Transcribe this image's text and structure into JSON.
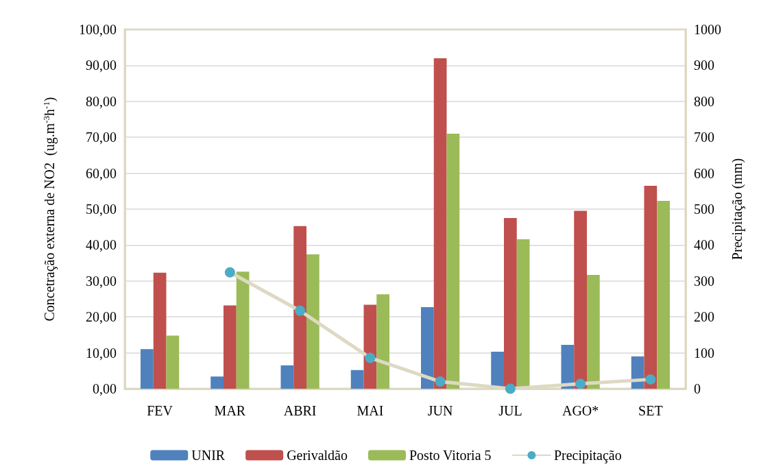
{
  "chart_data": {
    "type": "bar",
    "categories": [
      "FEV",
      "MAR",
      "ABRI",
      "MAI",
      "JUN",
      "JUL",
      "AGO*",
      "SET"
    ],
    "ylabel": "Concetração externa de NO2  (ug.m$^{-3}$h$^{-1}$)",
    "y2label": "Precipitação (mm)",
    "series": [
      {
        "name": "UNIR",
        "color": "#4f81bd",
        "values": [
          11.0,
          3.4,
          6.5,
          5.2,
          22.7,
          10.3,
          12.2,
          9.0
        ]
      },
      {
        "name": "Gerivaldão",
        "color": "#c0504d",
        "values": [
          32.3,
          23.2,
          45.3,
          23.4,
          92.0,
          47.5,
          49.5,
          56.5
        ]
      },
      {
        "name": "Posto Vitoria 5",
        "color": "#9bbb59",
        "values": [
          14.8,
          32.6,
          37.4,
          26.3,
          71.0,
          41.6,
          31.7,
          52.3
        ]
      },
      {
        "name": "Precipitação",
        "type": "line",
        "axis": "y2",
        "color": "#ddd9c3",
        "values": [
          null,
          324,
          217,
          86,
          20,
          0,
          14,
          26
        ]
      }
    ],
    "ylim": [
      0,
      100
    ],
    "yticks": [
      {
        "value": 0,
        "label": "0,00"
      },
      {
        "value": 10,
        "label": "10,00"
      },
      {
        "value": 20,
        "label": "20,00"
      },
      {
        "value": 30,
        "label": "30,00"
      },
      {
        "value": 40,
        "label": "40,00"
      },
      {
        "value": 50,
        "label": "50,00"
      },
      {
        "value": 60,
        "label": "60,00"
      },
      {
        "value": 70,
        "label": "70,00"
      },
      {
        "value": 80,
        "label": "80,00"
      },
      {
        "value": 90,
        "label": "90,00"
      },
      {
        "value": 100,
        "label": "100,00"
      }
    ],
    "y2lim": [
      0,
      1000
    ],
    "y2ticks": [
      0,
      100,
      200,
      300,
      400,
      500,
      600,
      700,
      800,
      900,
      1000
    ],
    "grid": "y",
    "legend": "bottom",
    "marker": "circle",
    "line_style": "solid"
  }
}
